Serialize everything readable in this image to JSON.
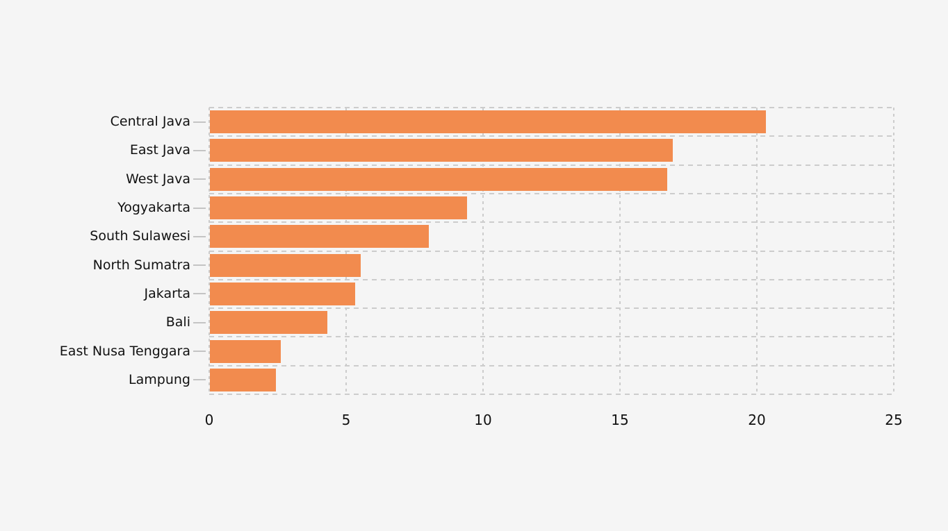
{
  "chart_data": {
    "type": "bar",
    "orientation": "horizontal",
    "title": "",
    "xlabel": "",
    "ylabel": "",
    "categories": [
      "Central Java",
      "East Java",
      "West Java",
      "Yogyakarta",
      "South Sulawesi",
      "North Sumatra",
      "Jakarta",
      "Bali",
      "East Nusa Tenggara",
      "Lampung"
    ],
    "values": [
      20.3,
      16.9,
      16.7,
      9.4,
      8.0,
      5.5,
      5.3,
      4.3,
      2.6,
      2.4
    ],
    "xlim": [
      0,
      25
    ],
    "x_ticks": [
      "0",
      "5",
      "10",
      "15",
      "20",
      "25"
    ],
    "grid": "dashed-both-axes",
    "legend": "none",
    "colors": {
      "bar": "#f28b4e",
      "background": "#f5f5f5",
      "gridline": "#cccccc",
      "axis_tick": "#c4c4c4",
      "text": "#111111"
    }
  }
}
